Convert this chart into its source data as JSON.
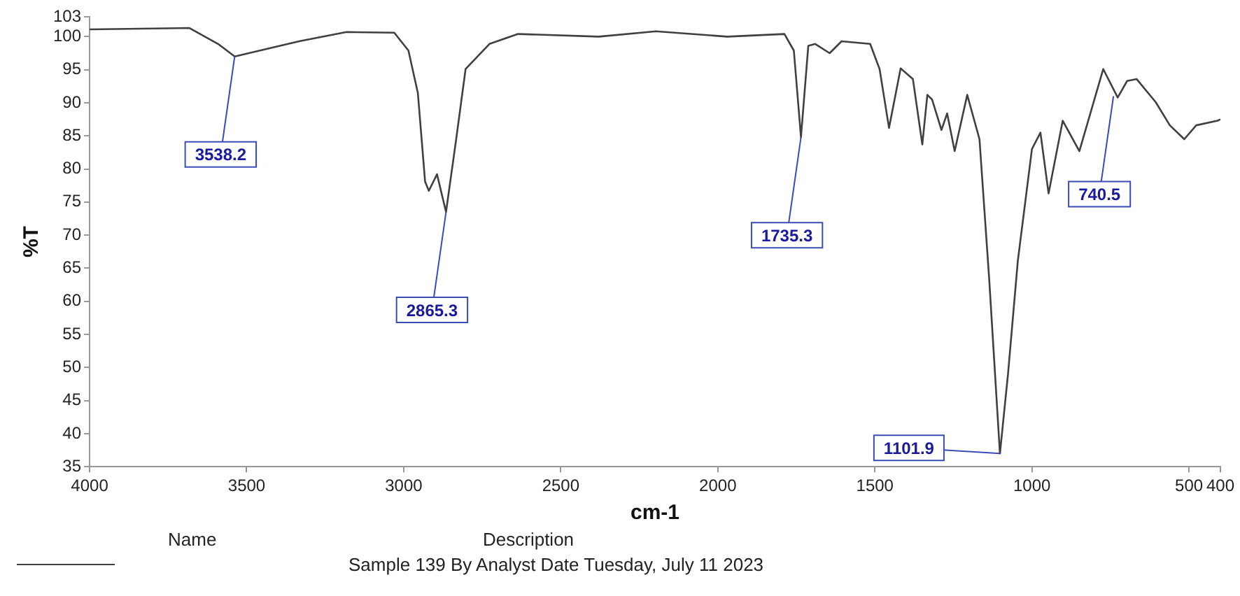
{
  "chart_data": {
    "type": "line",
    "xlabel": "cm-1",
    "ylabel": "%T",
    "x": [
      4000,
      3682,
      3591,
      3538,
      3333,
      3182,
      3030,
      2985,
      2955,
      2932,
      2920,
      2894,
      2865.3,
      2833,
      2803,
      2727,
      2636,
      2379,
      2197,
      1970,
      1788,
      1758,
      1735.3,
      1712,
      1690,
      1644,
      1606,
      1515,
      1485,
      1455,
      1418,
      1379,
      1349,
      1333,
      1318,
      1288,
      1270,
      1246,
      1206,
      1167,
      1136,
      1101.9,
      1076,
      1045,
      1000,
      973,
      947,
      902,
      849,
      773,
      727,
      697,
      667,
      606,
      561,
      515,
      477,
      409,
      400
    ],
    "series": [
      {
        "name": "Sample 139 By Analyst Date Tuesday, July 11 2023",
        "color": "#404040",
        "values": [
          101.1,
          101.3,
          98.9,
          97,
          99.3,
          100.7,
          100.6,
          97.9,
          91.5,
          78.1,
          76.7,
          79.2,
          73.5,
          84.5,
          95.1,
          98.9,
          100.4,
          100,
          100.8,
          100,
          100.4,
          97.9,
          84.8,
          98.6,
          98.9,
          97.5,
          99.3,
          98.9,
          95.1,
          86.2,
          95.2,
          93.6,
          83.7,
          91.2,
          90.5,
          85.9,
          88.4,
          82.7,
          91.2,
          84.5,
          63.3,
          37,
          49.1,
          66.1,
          83,
          85.5,
          76.3,
          87.3,
          82.7,
          95.1,
          90.8,
          93.3,
          93.6,
          90.1,
          86.6,
          84.5,
          86.6,
          87.3,
          87.5
        ]
      }
    ],
    "xlim": [
      4000,
      400
    ],
    "xticks": [
      4000,
      3500,
      3000,
      2500,
      2000,
      1500,
      1000,
      500,
      400
    ],
    "ylim": [
      35,
      103
    ],
    "yticks": [
      35,
      40,
      45,
      50,
      55,
      60,
      65,
      70,
      75,
      80,
      85,
      90,
      95,
      100,
      103
    ],
    "grid": false,
    "marker": "none",
    "legend": "bottom left",
    "annotations": [
      {
        "text": "3538.2",
        "x": 3538.2,
        "y": 97
      },
      {
        "text": "2865.3",
        "x": 2865.3,
        "y": 73.5
      },
      {
        "text": "1735.3",
        "x": 1735.3,
        "y": 84.8
      },
      {
        "text": "1101.9",
        "x": 1101.9,
        "y": 37
      },
      {
        "text": "740.5",
        "x": 740.5,
        "y": 91
      },
      "Name",
      "Description"
    ]
  }
}
